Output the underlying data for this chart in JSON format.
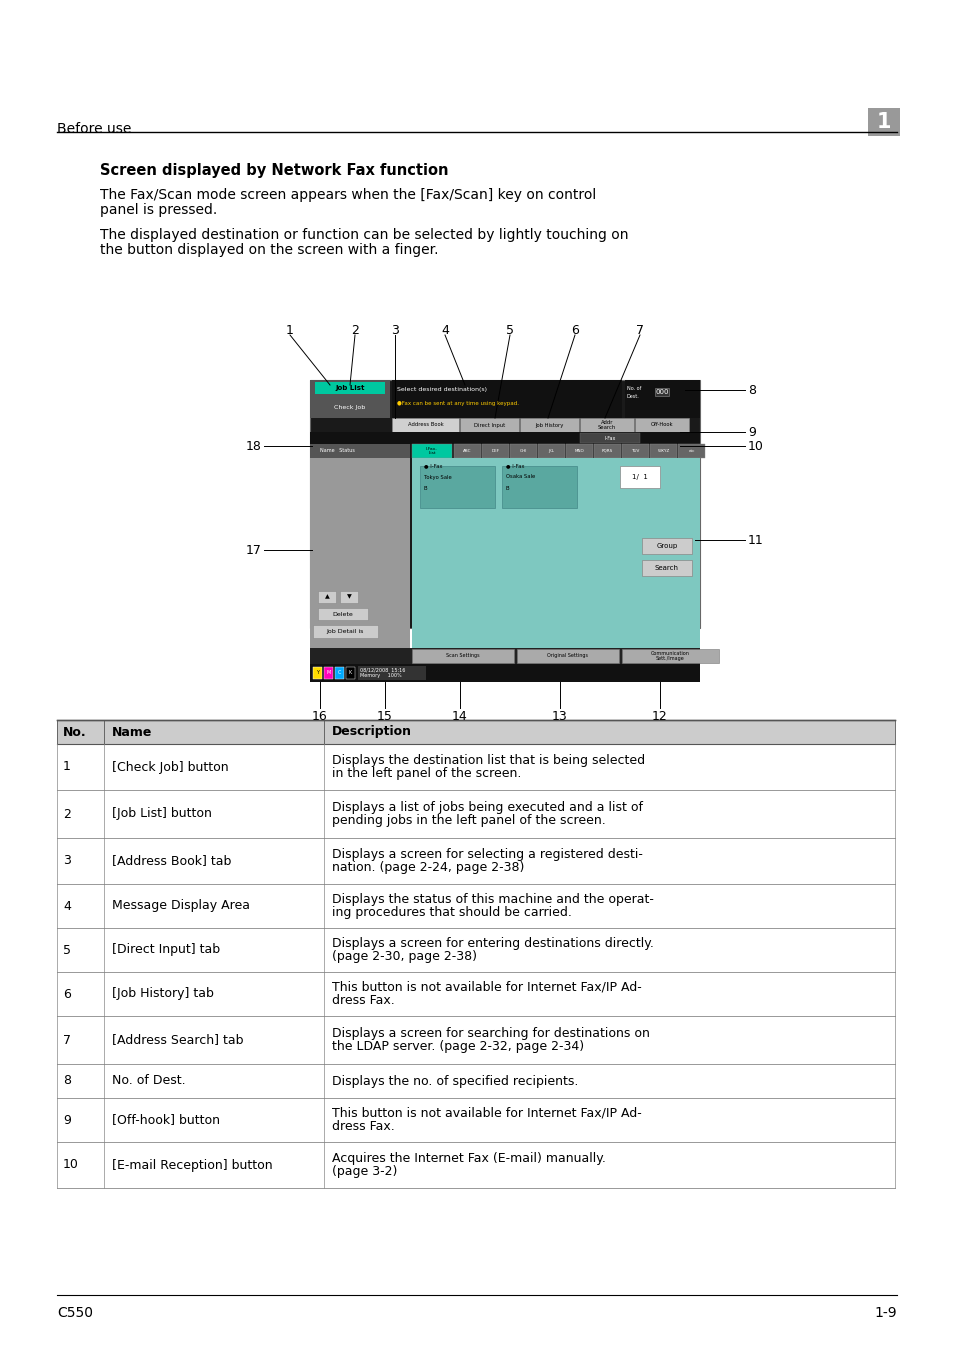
{
  "page_bg": "#ffffff",
  "header_text": "Before use",
  "header_number": "1",
  "title": "Screen displayed by Network Fax function",
  "para1": "The Fax/Scan mode screen appears when the [Fax/Scan] key on control\npanel is pressed.",
  "para2": "The displayed destination or function can be selected by lightly touching on\nthe button displayed on the screen with a finger.",
  "footer_left": "C550",
  "footer_right": "1-9",
  "table_headers": [
    "No.",
    "Name",
    "Description"
  ],
  "table_rows": [
    [
      "1",
      "[Check Job] button",
      "Displays the destination list that is being selected\nin the left panel of the screen."
    ],
    [
      "2",
      "[Job List] button",
      "Displays a list of jobs being executed and a list of\npending jobs in the left panel of the screen."
    ],
    [
      "3",
      "[Address Book] tab",
      "Displays a screen for selecting a registered desti-\nnation. (page 2-24, page 2-38)"
    ],
    [
      "4",
      "Message Display Area",
      "Displays the status of this machine and the operat-\ning procedures that should be carried."
    ],
    [
      "5",
      "[Direct Input] tab",
      "Displays a screen for entering destinations directly.\n(page 2-30, page 2-38)"
    ],
    [
      "6",
      "[Job History] tab",
      "This button is not available for Internet Fax/IP Ad-\ndress Fax."
    ],
    [
      "7",
      "[Address Search] tab",
      "Displays a screen for searching for destinations on\nthe LDAP server. (page 2-32, page 2-34)"
    ],
    [
      "8",
      "No. of Dest.",
      "Displays the no. of specified recipients."
    ],
    [
      "9",
      "[Off-hook] button",
      "This button is not available for Internet Fax/IP Ad-\ndress Fax."
    ],
    [
      "10",
      "[E-mail Reception] button",
      "Acquires the Internet Fax (E-mail) manually.\n(page 3-2)"
    ]
  ]
}
